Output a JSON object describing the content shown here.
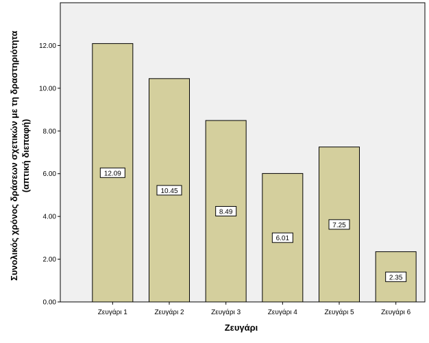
{
  "chart_data": {
    "type": "bar",
    "categories": [
      "Ζευγάρι 1",
      "Ζευγάρι 2",
      "Ζευγάρι 3",
      "Ζευγάρι 4",
      "Ζευγάρι 5",
      "Ζευγάρι 6"
    ],
    "values": [
      12.09,
      10.45,
      8.49,
      6.01,
      7.25,
      2.35
    ],
    "data_labels": [
      "12.09",
      "10.45",
      "8.49",
      "6.01",
      "7.25",
      "2.35"
    ],
    "xlabel": "Ζευγάρι",
    "ylabel_line1": "Συνολικός χρόνος δράσεων σχετικών με τη δραστηριότητα",
    "ylabel_line2": "(απτική διεπαφή)",
    "ylim": [
      0,
      14
    ],
    "yticks": [
      "0.00",
      "2.00",
      "4.00",
      "6.00",
      "8.00",
      "10.00",
      "12.00"
    ],
    "ytick_values": [
      0,
      2,
      4,
      6,
      8,
      10,
      12
    ],
    "grid": false,
    "legend": "none",
    "colors": {
      "bar_fill": "#d4cf9d",
      "bar_stroke": "#000000",
      "plot_background": "#f0f0f0",
      "label_box_fill": "#ffffff"
    }
  }
}
